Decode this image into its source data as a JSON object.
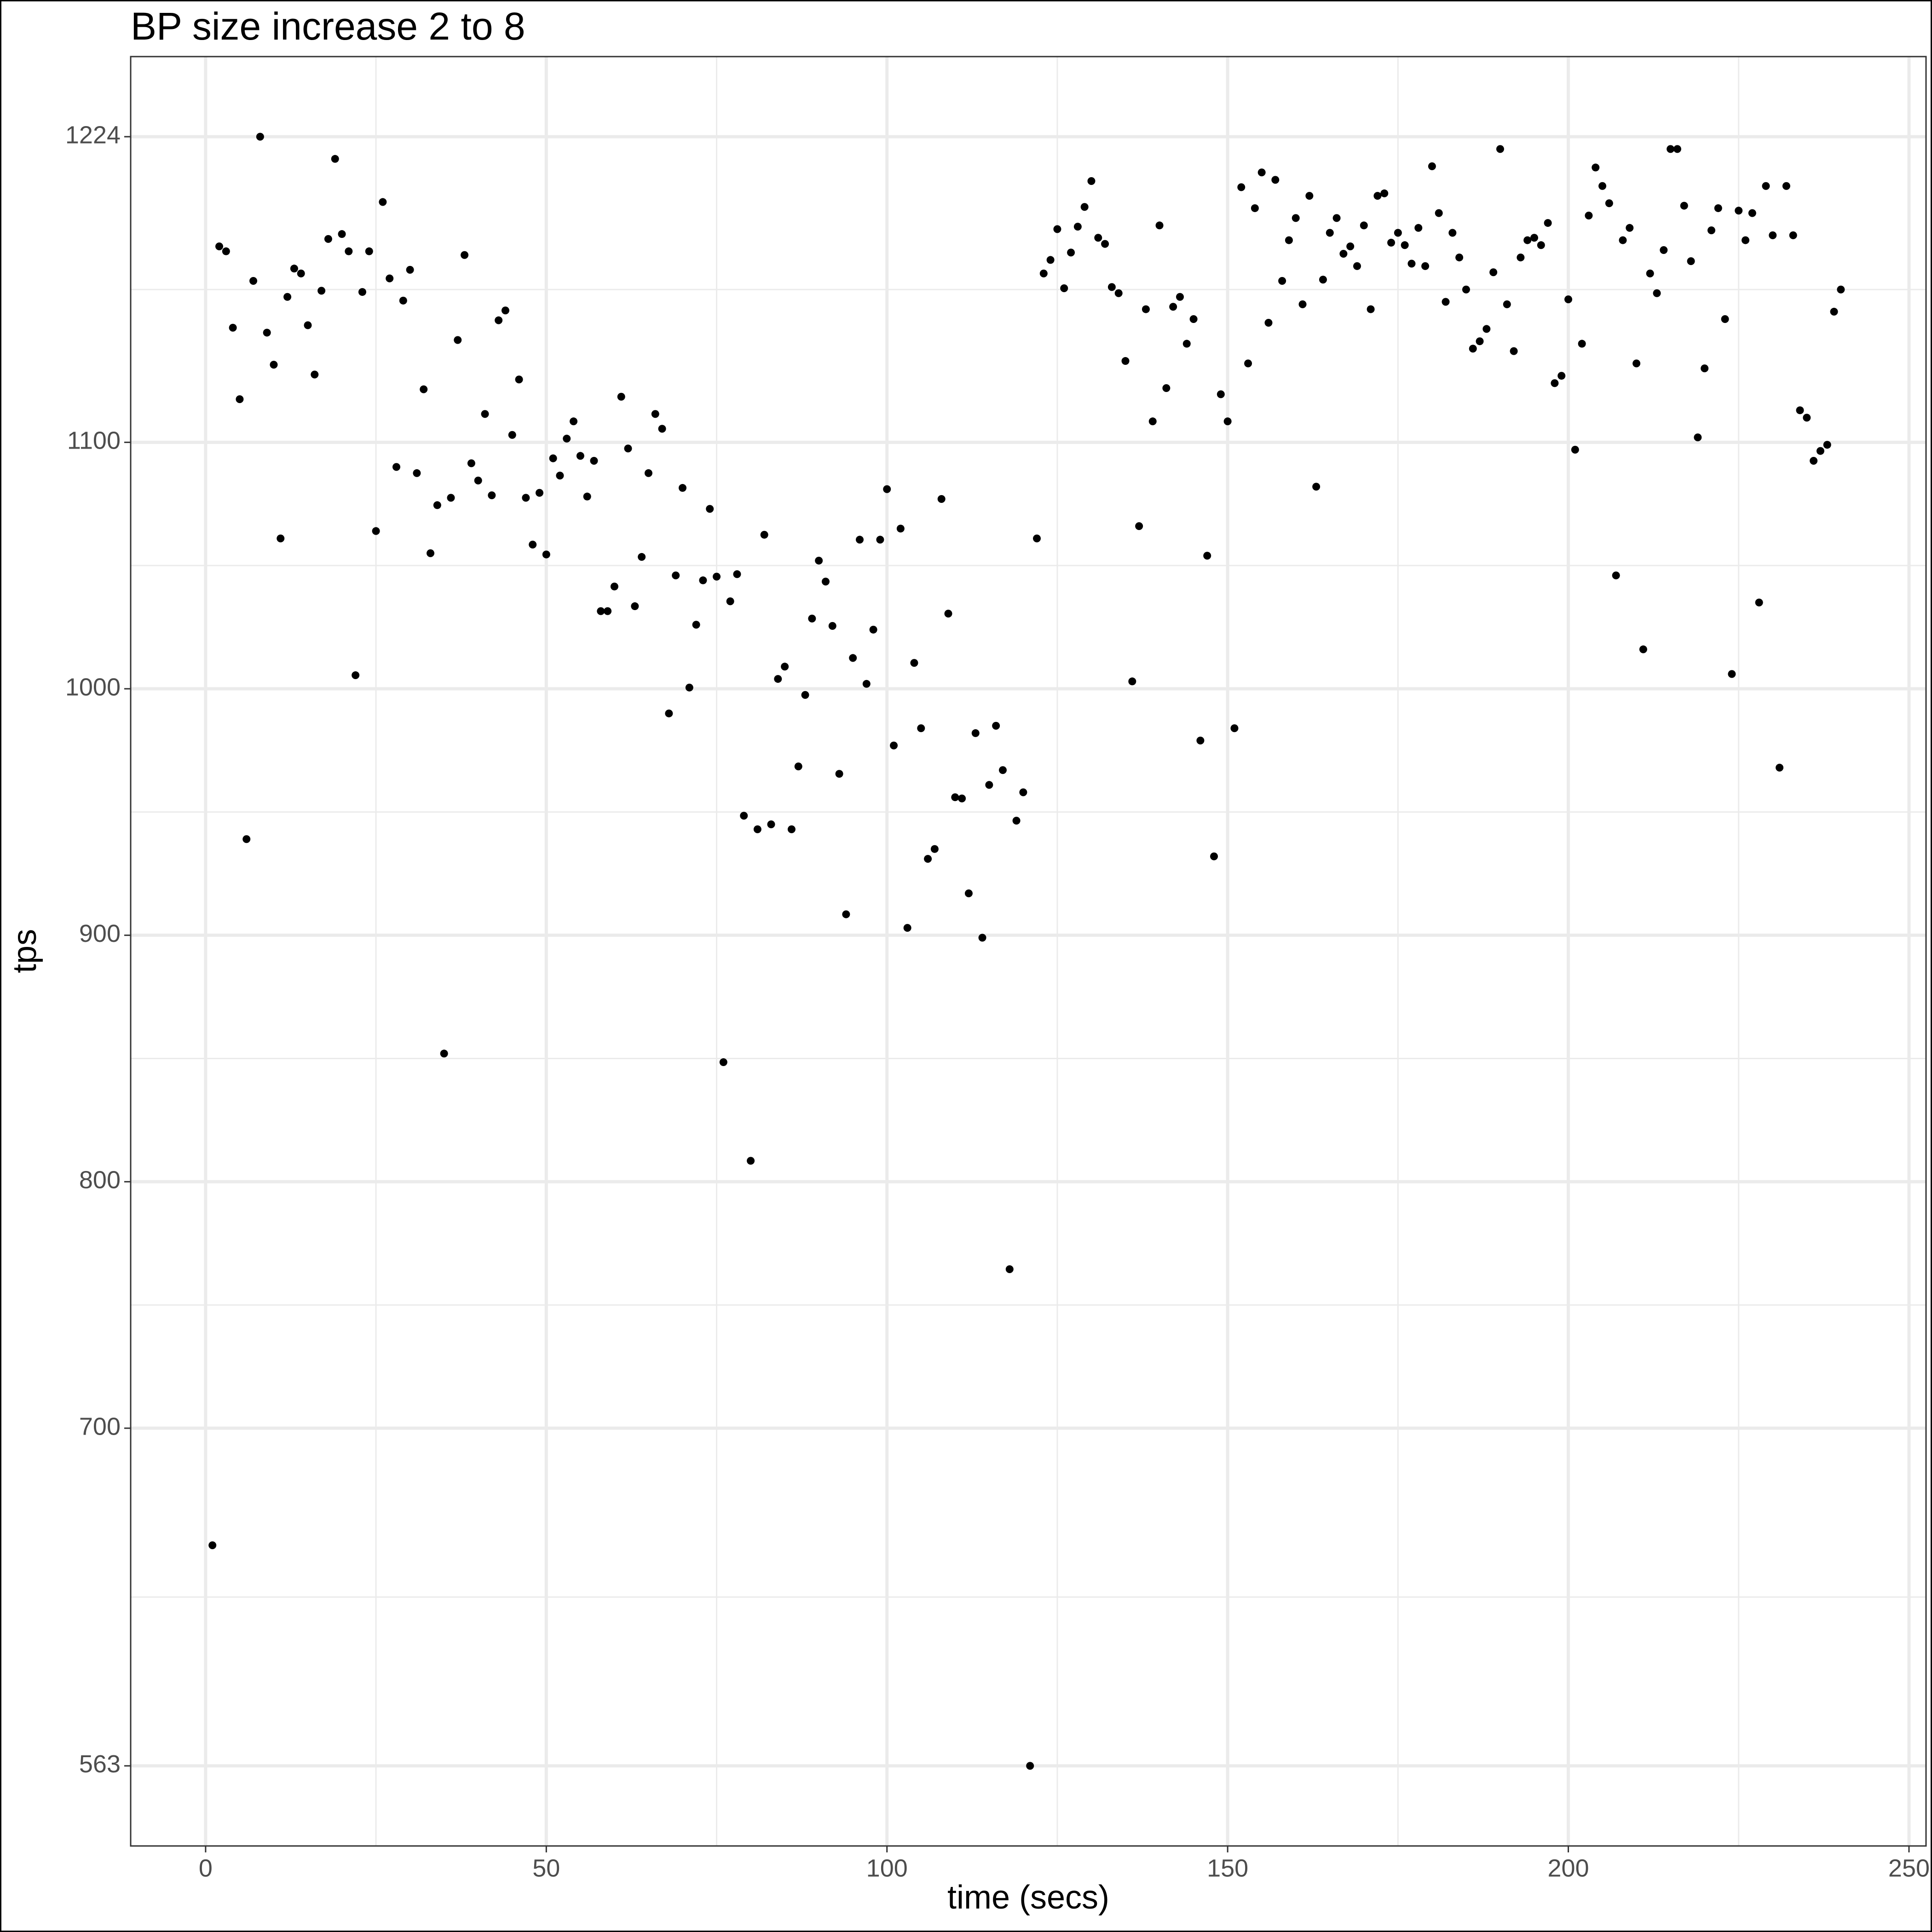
{
  "chart_data": {
    "type": "scatter",
    "title": "BP size increase 2 to 8",
    "x_label": "time (secs)",
    "y_label": "tps",
    "color": "#000000",
    "grid": true,
    "xlim": [
      -11,
      252.5
    ],
    "ylim": [
      530.5,
      1256.5
    ],
    "xticks": [
      0,
      50,
      100,
      150,
      200,
      250
    ],
    "yticks": [
      563,
      700,
      800,
      900,
      1000,
      1100,
      1224
    ],
    "x": [
      1,
      2,
      3,
      4,
      5,
      6,
      7,
      8,
      9,
      10,
      11,
      12,
      13,
      14,
      15,
      16,
      17,
      18,
      19,
      20,
      21,
      22,
      23,
      24,
      25,
      26,
      27,
      28,
      29,
      30,
      31,
      32,
      33,
      34,
      35,
      36,
      37,
      38,
      39,
      40,
      41,
      42,
      43,
      44,
      45,
      46,
      47,
      48,
      49,
      50,
      51,
      52,
      53,
      54,
      55,
      56,
      57,
      58,
      59,
      60,
      61,
      62,
      63,
      64,
      65,
      66,
      67,
      68,
      69,
      70,
      71,
      72,
      73,
      74,
      75,
      76,
      77,
      78,
      79,
      80,
      81,
      82,
      83,
      84,
      85,
      86,
      87,
      88,
      89,
      90,
      91,
      92,
      93,
      94,
      95,
      96,
      97,
      98,
      99,
      100,
      101,
      102,
      103,
      104,
      105,
      106,
      107,
      108,
      109,
      110,
      111,
      112,
      113,
      114,
      115,
      116,
      117,
      118,
      119,
      120,
      121,
      122,
      123,
      124,
      125,
      126,
      127,
      128,
      129,
      130,
      131,
      132,
      133,
      134,
      135,
      136,
      137,
      138,
      139,
      140,
      141,
      142,
      143,
      144,
      145,
      146,
      147,
      148,
      149,
      150,
      151,
      152,
      153,
      154,
      155,
      156,
      157,
      158,
      159,
      160,
      161,
      162,
      163,
      164,
      165,
      166,
      167,
      168,
      169,
      170,
      171,
      172,
      173,
      174,
      175,
      176,
      177,
      178,
      179,
      180,
      181,
      182,
      183,
      184,
      185,
      186,
      187,
      188,
      189,
      190,
      191,
      192,
      193,
      194,
      195,
      196,
      197,
      198,
      199,
      200,
      201,
      202,
      203,
      204,
      205,
      206,
      207,
      208,
      209,
      210,
      211,
      212,
      213,
      214,
      215,
      216,
      217,
      218,
      219,
      220,
      221,
      222,
      223,
      224,
      225,
      226,
      227,
      228,
      229,
      230,
      231,
      232,
      233,
      234,
      235,
      236,
      237,
      238,
      239,
      240
    ],
    "y": [
      652.5,
      1179.5,
      1177.5,
      1146.5,
      1117.5,
      939,
      1165.5,
      1224,
      1144.5,
      1131.5,
      1061,
      1159,
      1170.5,
      1168.5,
      1147.5,
      1127.5,
      1161.5,
      1182.5,
      1215,
      1184.5,
      1177.5,
      1005.5,
      1161,
      1177.5,
      1064,
      1197.5,
      1166.5,
      1090,
      1157.5,
      1170,
      1087.5,
      1121.5,
      1055,
      1074.5,
      852,
      1077.5,
      1141.5,
      1176,
      1091.5,
      1084.5,
      1111.5,
      1078.5,
      1149.5,
      1153.5,
      1103,
      1125.5,
      1077.5,
      1058.5,
      1079.5,
      1054.5,
      1093.5,
      1086.5,
      1101.5,
      1108.5,
      1094.5,
      1078,
      1092.5,
      1031.5,
      1031.5,
      1041.5,
      1118.5,
      1097.5,
      1033.5,
      1053.5,
      1087.5,
      1111.5,
      1105.5,
      990,
      1046,
      1081.5,
      1000.5,
      1026,
      1044,
      1073,
      1045.5,
      848.5,
      1035.5,
      1046.5,
      948.5,
      808.5,
      943,
      1062.5,
      945,
      1004,
      1009,
      943,
      968.5,
      997.5,
      1028.5,
      1052,
      1043.5,
      1025.5,
      965.5,
      908.5,
      1012.5,
      1060.5,
      1002,
      1024,
      1060.5,
      1081,
      977,
      1065,
      903,
      1010.5,
      984,
      931,
      935,
      1077,
      1030.5,
      956,
      955.5,
      917,
      982,
      899,
      961,
      985,
      967,
      764.5,
      946.5,
      958,
      563,
      1061,
      1168.5,
      1174,
      1186.5,
      1162.5,
      1177,
      1187.5,
      1195.5,
      1206,
      1183,
      1180.5,
      1163,
      1160.5,
      1133,
      1003,
      1066,
      1154,
      1108.5,
      1188,
      1122,
      1155,
      1159,
      1140,
      1150,
      979,
      1054,
      932,
      1119.5,
      1108.5,
      984,
      1203.5,
      1132,
      1195,
      1209.5,
      1148.5,
      1206.5,
      1165.5,
      1182,
      1191,
      1156,
      1200,
      1082,
      1166,
      1185,
      1191,
      1176.5,
      1179.5,
      1171.5,
      1188,
      1154,
      1200,
      1201,
      1181,
      1185,
      1180,
      1172.5,
      1187,
      1171.5,
      1212,
      1193,
      1157,
      1185,
      1175,
      1162,
      1138,
      1141,
      1146,
      1169,
      1219,
      1156,
      1137,
      1175,
      1182,
      1183,
      1180,
      1189,
      1124,
      1127,
      1158,
      1097,
      1140,
      1192,
      1211.5,
      1204,
      1197,
      1046,
      1182,
      1187,
      1132,
      1016,
      1168.5,
      1160.5,
      1178,
      1219,
      1219,
      1196,
      1173.5,
      1102,
      1130,
      1186,
      1195,
      1150,
      1006,
      1194,
      1182,
      1193,
      1035,
      1204,
      1184,
      968,
      1204,
      1184,
      1113,
      1110,
      1092.5,
      1096.5,
      1099,
      1153,
      1162
    ]
  }
}
